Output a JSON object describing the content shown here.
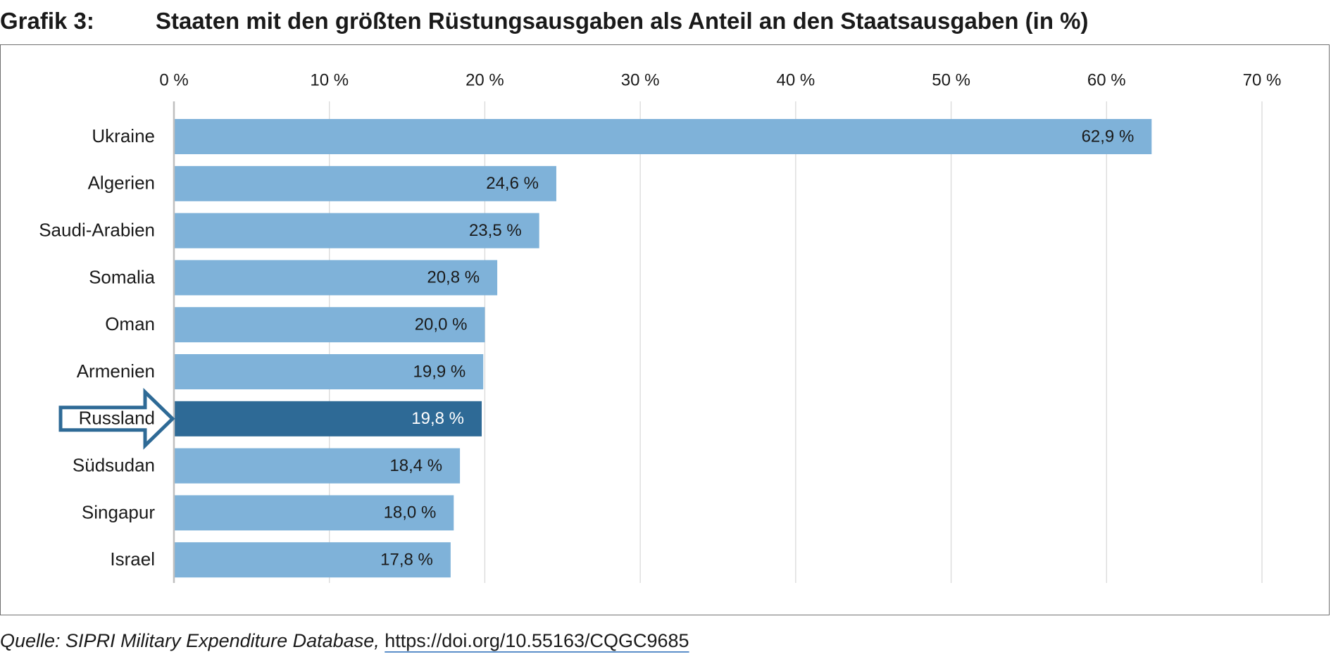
{
  "header": {
    "prefix": "Grafik 3:",
    "title": "Staaten mit den größten Rüstungsausgaben als Anteil an den Staatsausgaben (in %)"
  },
  "source": {
    "label": "Quelle: SIPRI Military Expenditure Database,",
    "link": "https://doi.org/10.55163/CQGC9685"
  },
  "colors": {
    "bar": "#7fb2d9",
    "highlight_bar": "#2e6a96",
    "arrow": "#2e6a96",
    "grid": "#d9d9d9",
    "axis": "#bfbfbf"
  },
  "chart_data": {
    "type": "bar",
    "orientation": "horizontal",
    "categories": [
      "Ukraine",
      "Algerien",
      "Saudi-Arabien",
      "Somalia",
      "Oman",
      "Armenien",
      "Russland",
      "Südsudan",
      "Singapur",
      "Israel"
    ],
    "values": [
      62.9,
      24.6,
      23.5,
      20.8,
      20.0,
      19.9,
      19.8,
      18.4,
      18.0,
      17.8
    ],
    "data_labels": [
      "62,9 %",
      "24,6 %",
      "23,5 %",
      "20,8 %",
      "20,0 %",
      "19,9 %",
      "19,8 %",
      "18,4 %",
      "18,0 %",
      "17,8 %"
    ],
    "xlim": [
      0,
      70
    ],
    "x_ticks": [
      0,
      10,
      20,
      30,
      40,
      50,
      60,
      70
    ],
    "x_tick_labels": [
      "0 %",
      "10 %",
      "20 %",
      "30 %",
      "40 %",
      "50 %",
      "60 %",
      "70 %"
    ],
    "x_axis_position": "top",
    "highlight": "Russland",
    "grid": true,
    "legend": "none"
  }
}
